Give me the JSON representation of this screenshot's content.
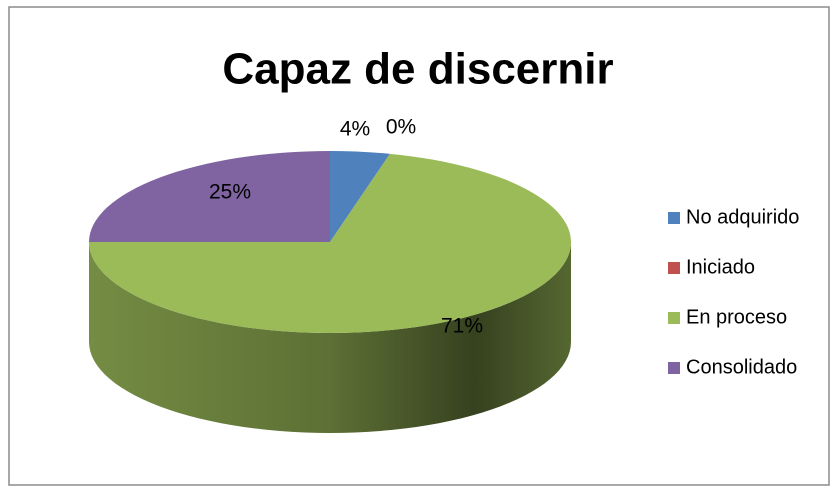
{
  "chart_data": {
    "type": "pie",
    "title": "Capaz de discernir",
    "categories": [
      "No adquirido",
      "Iniciado",
      "En proceso",
      "Consolidado"
    ],
    "values": [
      4,
      0,
      71,
      25
    ],
    "value_labels": [
      "4%",
      "0%",
      "71%",
      "25%"
    ],
    "colors": [
      "#4f81bd",
      "#c0504d",
      "#9bbb59",
      "#8064a2"
    ],
    "legend": "right"
  }
}
